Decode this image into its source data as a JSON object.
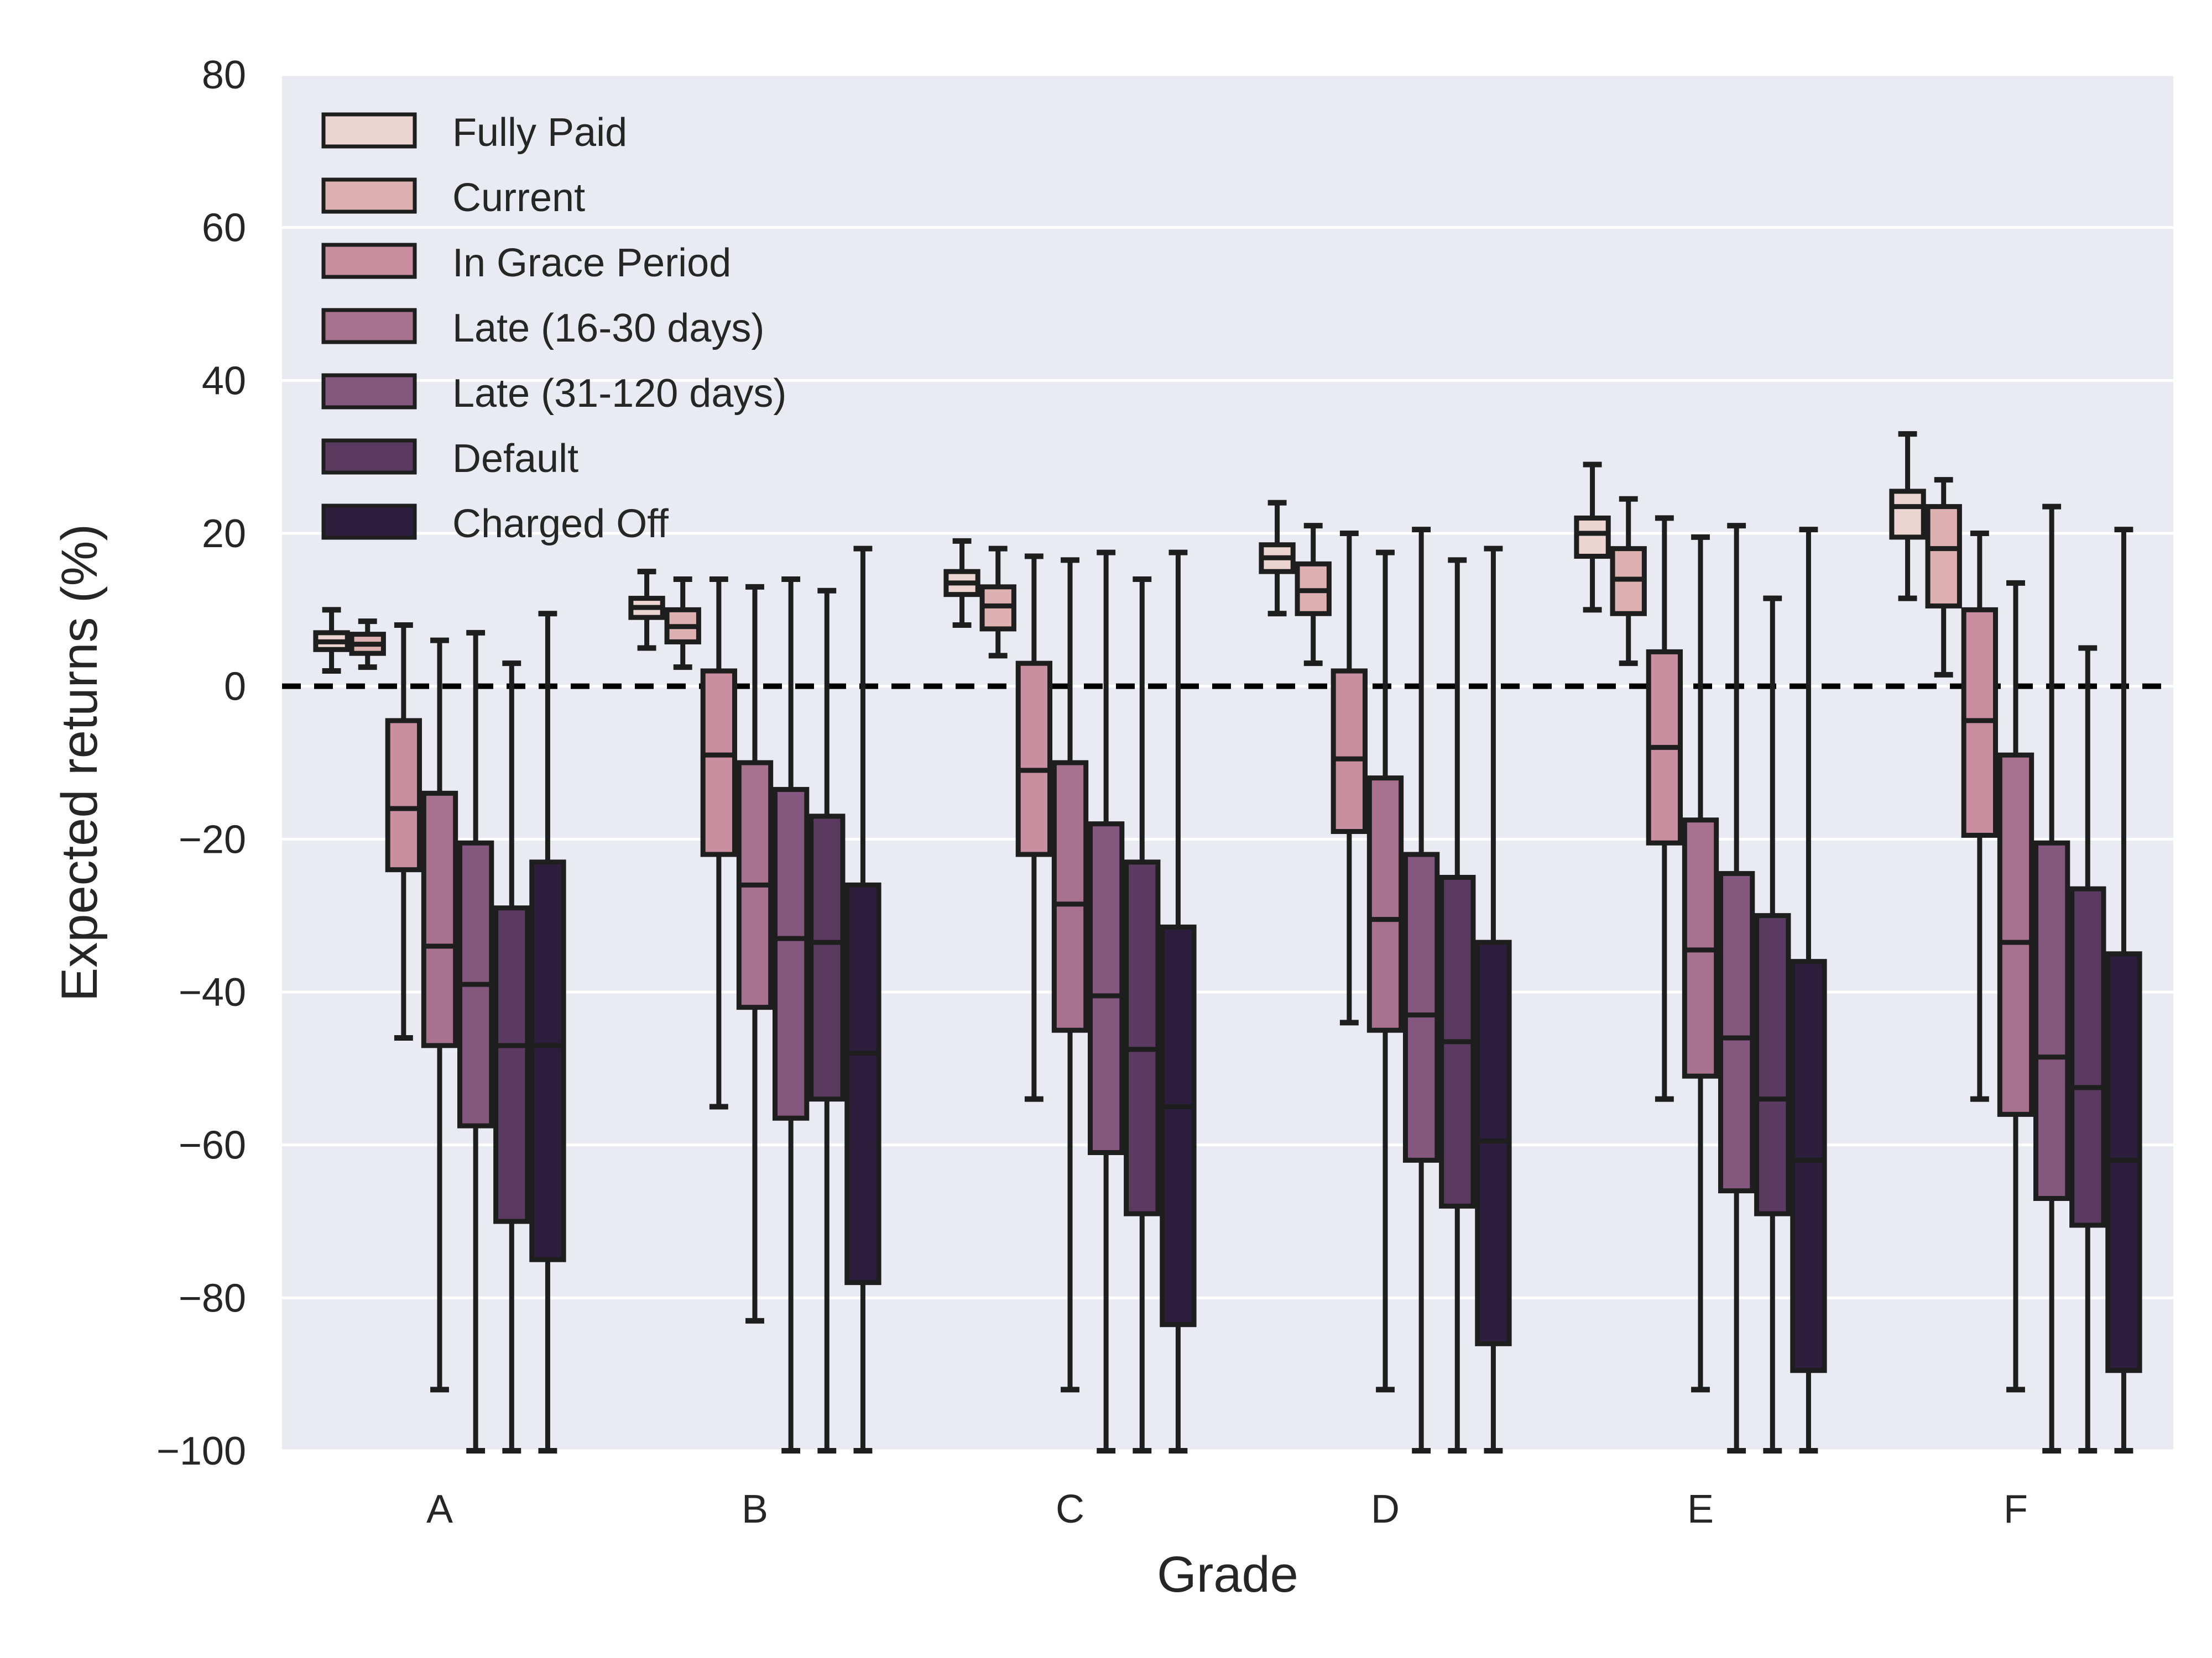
{
  "chart_data": {
    "type": "box",
    "xlabel": "Grade",
    "ylabel": "Expected returns (%)",
    "ylim": [
      -100,
      80
    ],
    "yticks": [
      -100,
      -80,
      -60,
      -40,
      -20,
      0,
      20,
      40,
      60,
      80
    ],
    "categories": [
      "A",
      "B",
      "C",
      "D",
      "E",
      "F"
    ],
    "reference_line": {
      "y": 0,
      "style": "dashed",
      "color": "#000000"
    },
    "grid": true,
    "legend_position": "top-left",
    "background": "#eaeaf2",
    "series": [
      {
        "name": "Fully Paid",
        "color": "#ecd5d0",
        "boxes": [
          {
            "whislo": 2,
            "q1": 4.8,
            "med": 5.8,
            "q3": 7,
            "whishi": 10
          },
          {
            "whislo": 5,
            "q1": 9,
            "med": 10.3,
            "q3": 11.5,
            "whishi": 15
          },
          {
            "whislo": 8,
            "q1": 12,
            "med": 13.5,
            "q3": 15,
            "whishi": 19
          },
          {
            "whislo": 9.5,
            "q1": 15,
            "med": 16.8,
            "q3": 18.5,
            "whishi": 24
          },
          {
            "whislo": 10,
            "q1": 17,
            "med": 20,
            "q3": 22,
            "whishi": 29
          },
          {
            "whislo": 11.5,
            "q1": 19.5,
            "med": 23.5,
            "q3": 25.5,
            "whishi": 33
          }
        ]
      },
      {
        "name": "Current",
        "color": "#ddb1b1",
        "boxes": [
          {
            "whislo": 2.5,
            "q1": 4.3,
            "med": 5.5,
            "q3": 6.8,
            "whishi": 8.5
          },
          {
            "whislo": 2.5,
            "q1": 5.8,
            "med": 7.8,
            "q3": 10,
            "whishi": 14
          },
          {
            "whislo": 4,
            "q1": 7.5,
            "med": 10.5,
            "q3": 13,
            "whishi": 18
          },
          {
            "whislo": 3,
            "q1": 9.5,
            "med": 12.5,
            "q3": 16,
            "whishi": 21
          },
          {
            "whislo": 3,
            "q1": 9.5,
            "med": 14,
            "q3": 18,
            "whishi": 24.5
          },
          {
            "whislo": 1.5,
            "q1": 10.5,
            "med": 18,
            "q3": 23.5,
            "whishi": 27
          }
        ]
      },
      {
        "name": "In Grace Period",
        "color": "#c98fa0",
        "boxes": [
          {
            "whislo": -46,
            "q1": -24,
            "med": -16,
            "q3": -4.5,
            "whishi": 8
          },
          {
            "whislo": -55,
            "q1": -22,
            "med": -9,
            "q3": 2,
            "whishi": 14
          },
          {
            "whislo": -54,
            "q1": -22,
            "med": -11,
            "q3": 3,
            "whishi": 17
          },
          {
            "whislo": -44,
            "q1": -19,
            "med": -9.5,
            "q3": 2,
            "whishi": 20
          },
          {
            "whislo": -54,
            "q1": -20.5,
            "med": -8,
            "q3": 4.5,
            "whishi": 22
          },
          {
            "whislo": -54,
            "q1": -19.5,
            "med": -4.5,
            "q3": 10,
            "whishi": 20
          }
        ]
      },
      {
        "name": "Late (16-30 days)",
        "color": "#a8728f",
        "boxes": [
          {
            "whislo": -92,
            "q1": -47,
            "med": -34,
            "q3": -14,
            "whishi": 6
          },
          {
            "whislo": -83,
            "q1": -42,
            "med": -26,
            "q3": -10,
            "whishi": 13
          },
          {
            "whislo": -92,
            "q1": -45,
            "med": -28.5,
            "q3": -10,
            "whishi": 16.5
          },
          {
            "whislo": -92,
            "q1": -45,
            "med": -30.5,
            "q3": -12,
            "whishi": 17.5
          },
          {
            "whislo": -92,
            "q1": -51,
            "med": -34.5,
            "q3": -17.5,
            "whishi": 19.5
          },
          {
            "whislo": -92,
            "q1": -56,
            "med": -33.5,
            "q3": -9,
            "whishi": 13.5
          }
        ]
      },
      {
        "name": "Late (31-120 days)",
        "color": "#83577e",
        "boxes": [
          {
            "whislo": -100,
            "q1": -57.5,
            "med": -39,
            "q3": -20.5,
            "whishi": 7
          },
          {
            "whislo": -100,
            "q1": -56.5,
            "med": -33,
            "q3": -13.5,
            "whishi": 14
          },
          {
            "whislo": -100,
            "q1": -61,
            "med": -40.5,
            "q3": -18,
            "whishi": 17.5
          },
          {
            "whislo": -100,
            "q1": -62,
            "med": -43,
            "q3": -22,
            "whishi": 20.5
          },
          {
            "whislo": -100,
            "q1": -66,
            "med": -46,
            "q3": -24.5,
            "whishi": 21
          },
          {
            "whislo": -100,
            "q1": -67,
            "med": -48.5,
            "q3": -20.5,
            "whishi": 23.5
          }
        ]
      },
      {
        "name": "Default",
        "color": "#5a3a60",
        "boxes": [
          {
            "whislo": -100,
            "q1": -70,
            "med": -47,
            "q3": -29,
            "whishi": 3
          },
          {
            "whislo": -100,
            "q1": -54,
            "med": -33.5,
            "q3": -17,
            "whishi": 12.5
          },
          {
            "whislo": -100,
            "q1": -69,
            "med": -47.5,
            "q3": -23,
            "whishi": 14
          },
          {
            "whislo": -100,
            "q1": -68,
            "med": -46.5,
            "q3": -25,
            "whishi": 16.5
          },
          {
            "whislo": -100,
            "q1": -69,
            "med": -54,
            "q3": -30,
            "whishi": 11.5
          },
          {
            "whislo": -100,
            "q1": -70.5,
            "med": -52.5,
            "q3": -26.5,
            "whishi": 5
          }
        ]
      },
      {
        "name": "Charged Off",
        "color": "#2d1e3e",
        "boxes": [
          {
            "whislo": -100,
            "q1": -75,
            "med": -47,
            "q3": -23,
            "whishi": 9.5
          },
          {
            "whislo": -100,
            "q1": -78,
            "med": -48,
            "q3": -26,
            "whishi": 18
          },
          {
            "whislo": -100,
            "q1": -83.5,
            "med": -55,
            "q3": -31.5,
            "whishi": 17.5
          },
          {
            "whislo": -100,
            "q1": -86,
            "med": -59.5,
            "q3": -33.5,
            "whishi": 18
          },
          {
            "whislo": -100,
            "q1": -89.5,
            "med": -62,
            "q3": -36,
            "whishi": 20.5
          },
          {
            "whislo": -100,
            "q1": -89.5,
            "med": -62,
            "q3": -35,
            "whishi": 20.5
          }
        ]
      }
    ]
  }
}
